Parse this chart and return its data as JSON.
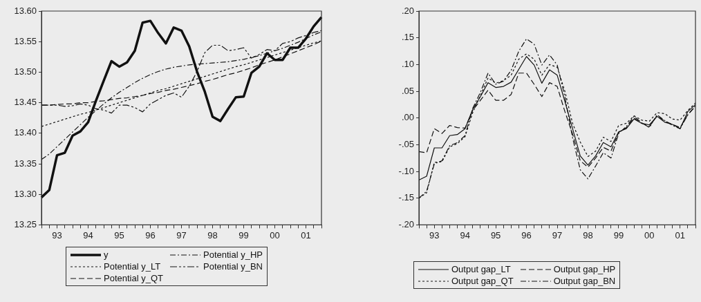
{
  "chart_data": [
    {
      "type": "line",
      "legend": "bottom",
      "categories": [
        null,
        null,
        "93",
        null,
        null,
        null,
        "94",
        null,
        null,
        null,
        "95",
        null,
        null,
        null,
        "96",
        null,
        null,
        null,
        "97",
        null,
        null,
        null,
        "98",
        null,
        null,
        null,
        "99",
        null,
        null,
        null,
        "00",
        null,
        null,
        null,
        "01",
        null,
        null
      ],
      "ylim": [
        13.25,
        13.6
      ],
      "yticks": [
        13.25,
        {
          "value": 13.3,
          "label": "13.30"
        },
        13.35,
        {
          "value": 13.4,
          "label": "13.40"
        },
        13.45,
        {
          "value": 13.5,
          "label": "13.50"
        },
        13.55,
        {
          "value": 13.6,
          "label": "13.60"
        }
      ],
      "series": [
        {
          "name": "y",
          "color": "#111111",
          "line_style": "solid",
          "values": [
            13.295,
            13.307,
            13.364,
            13.368,
            13.396,
            13.403,
            13.418,
            13.453,
            13.486,
            13.518,
            13.509,
            13.516,
            13.535,
            13.581,
            13.584,
            13.564,
            13.547,
            13.573,
            13.568,
            13.542,
            13.501,
            13.468,
            13.427,
            13.42,
            13.44,
            13.459,
            13.46,
            13.499,
            13.509,
            13.531,
            13.52,
            13.52,
            13.54,
            13.54,
            13.555,
            13.575,
            13.59
          ]
        },
        {
          "name": "Potential y_LT",
          "color": "#111111",
          "line_style": "dotted",
          "values": [
            13.411,
            13.415,
            13.419,
            13.423,
            13.427,
            13.431,
            13.434,
            13.438,
            13.442,
            13.446,
            13.45,
            13.454,
            13.458,
            13.462,
            13.466,
            13.47,
            13.473,
            13.477,
            13.481,
            13.485,
            13.489,
            13.493,
            13.497,
            13.501,
            13.505,
            13.509,
            13.512,
            13.516,
            13.52,
            13.524,
            13.528,
            13.532,
            13.536,
            13.54,
            13.544,
            13.548,
            13.551
          ]
        },
        {
          "name": "Potential y_QT",
          "color": "#111111",
          "line_style": "dashed",
          "values": [
            13.446,
            13.446,
            13.447,
            13.448,
            13.448,
            13.45,
            13.45,
            13.452,
            13.453,
            13.455,
            13.457,
            13.458,
            13.46,
            13.462,
            13.465,
            13.467,
            13.47,
            13.472,
            13.475,
            13.478,
            13.481,
            13.485,
            13.488,
            13.492,
            13.496,
            13.499,
            13.503,
            13.507,
            13.512,
            13.516,
            13.52,
            13.525,
            13.53,
            13.535,
            13.54,
            13.545,
            13.551
          ]
        },
        {
          "name": "Potential y_HP",
          "color": "#111111",
          "line_style": "dashdot",
          "values": [
            13.357,
            13.366,
            13.378,
            13.39,
            13.402,
            13.414,
            13.426,
            13.437,
            13.448,
            13.458,
            13.467,
            13.475,
            13.483,
            13.49,
            13.496,
            13.501,
            13.505,
            13.508,
            13.51,
            13.512,
            13.513,
            13.514,
            13.515,
            13.516,
            13.517,
            13.519,
            13.521,
            13.524,
            13.527,
            13.531,
            13.535,
            13.539,
            13.544,
            13.549,
            13.555,
            13.561,
            13.566
          ]
        },
        {
          "name": "Potential y_BN",
          "color": "#111111",
          "line_style": "longdash",
          "values": [
            13.446,
            13.446,
            13.446,
            13.444,
            13.445,
            13.448,
            13.446,
            13.44,
            13.438,
            13.433,
            13.446,
            13.446,
            13.442,
            13.435,
            13.448,
            13.455,
            13.462,
            13.466,
            13.459,
            13.477,
            13.501,
            13.532,
            13.544,
            13.544,
            13.535,
            13.537,
            13.54,
            13.523,
            13.529,
            13.537,
            13.535,
            13.547,
            13.55,
            13.556,
            13.56,
            13.565,
            13.568
          ]
        }
      ]
    },
    {
      "type": "line",
      "legend": "bottom",
      "categories": [
        null,
        null,
        "93",
        null,
        null,
        null,
        "94",
        null,
        null,
        null,
        "95",
        null,
        null,
        null,
        "96",
        null,
        null,
        null,
        "97",
        null,
        null,
        null,
        "98",
        null,
        null,
        null,
        "99",
        null,
        null,
        null,
        "00",
        null,
        null,
        null,
        "01",
        null,
        null
      ],
      "ylim": [
        -0.2,
        0.2
      ],
      "yticks": [
        {
          "value": -0.2,
          "label": "-.20"
        },
        {
          "value": -0.15,
          "label": "-.15"
        },
        {
          "value": -0.1,
          "label": "-.10"
        },
        {
          "value": -0.05,
          "label": "-.05"
        },
        {
          "value": 0,
          "label": ".00"
        },
        {
          "value": 0.05,
          "label": ".05"
        },
        {
          "value": 0.1,
          "label": ".10"
        },
        {
          "value": 0.15,
          "label": ".15"
        },
        {
          "value": 0.2,
          "label": ".20"
        }
      ],
      "series": [
        {
          "name": "Output gap_LT",
          "color": "#111111",
          "line_style": "solid",
          "values": [
            -0.116,
            -0.109,
            -0.056,
            -0.056,
            -0.033,
            -0.031,
            -0.02,
            0.016,
            0.04,
            0.066,
            0.057,
            0.059,
            0.067,
            0.091,
            0.115,
            0.099,
            0.065,
            0.09,
            0.08,
            0.031,
            -0.02,
            -0.071,
            -0.088,
            -0.071,
            -0.046,
            -0.054,
            -0.026,
            -0.02,
            -0.002,
            -0.01,
            -0.013,
            0.003,
            -0.008,
            -0.012,
            -0.02,
            0.012,
            0.025
          ]
        },
        {
          "name": "Output gap_QT",
          "color": "#111111",
          "line_style": "dotted",
          "values": [
            -0.15,
            -0.14,
            -0.083,
            -0.082,
            -0.054,
            -0.048,
            -0.035,
            0.01,
            0.042,
            0.075,
            0.065,
            0.07,
            0.08,
            0.11,
            0.12,
            0.11,
            0.08,
            0.1,
            0.095,
            0.05,
            -0.01,
            -0.045,
            -0.072,
            -0.062,
            -0.036,
            -0.044,
            -0.014,
            -0.01,
            0.004,
            -0.004,
            -0.006,
            0.01,
            0.008,
            -0.002,
            -0.004,
            0.014,
            0.028
          ]
        },
        {
          "name": "Output gap_HP",
          "color": "#111111",
          "line_style": "dashed",
          "values": [
            -0.063,
            -0.065,
            -0.02,
            -0.029,
            -0.014,
            -0.018,
            -0.019,
            0.014,
            0.033,
            0.052,
            0.033,
            0.033,
            0.044,
            0.084,
            0.084,
            0.063,
            0.04,
            0.066,
            0.059,
            0.012,
            -0.03,
            -0.08,
            -0.092,
            -0.075,
            -0.055,
            -0.062,
            -0.027,
            -0.018,
            0,
            -0.01,
            -0.016,
            0.004,
            -0.006,
            -0.012,
            -0.018,
            0.006,
            0.022
          ]
        },
        {
          "name": "Output gap_BN",
          "color": "#111111",
          "line_style": "dashdot",
          "values": [
            -0.15,
            -0.137,
            -0.086,
            -0.08,
            -0.052,
            -0.046,
            -0.033,
            0.018,
            0.048,
            0.084,
            0.063,
            0.069,
            0.089,
            0.125,
            0.148,
            0.138,
            0.099,
            0.118,
            0.099,
            0.04,
            -0.037,
            -0.097,
            -0.114,
            -0.09,
            -0.065,
            -0.075,
            -0.029,
            -0.016,
            0.003,
            -0.009,
            -0.018,
            0.006,
            -0.005,
            -0.014,
            -0.02,
            0.006,
            0.023
          ]
        }
      ]
    }
  ]
}
